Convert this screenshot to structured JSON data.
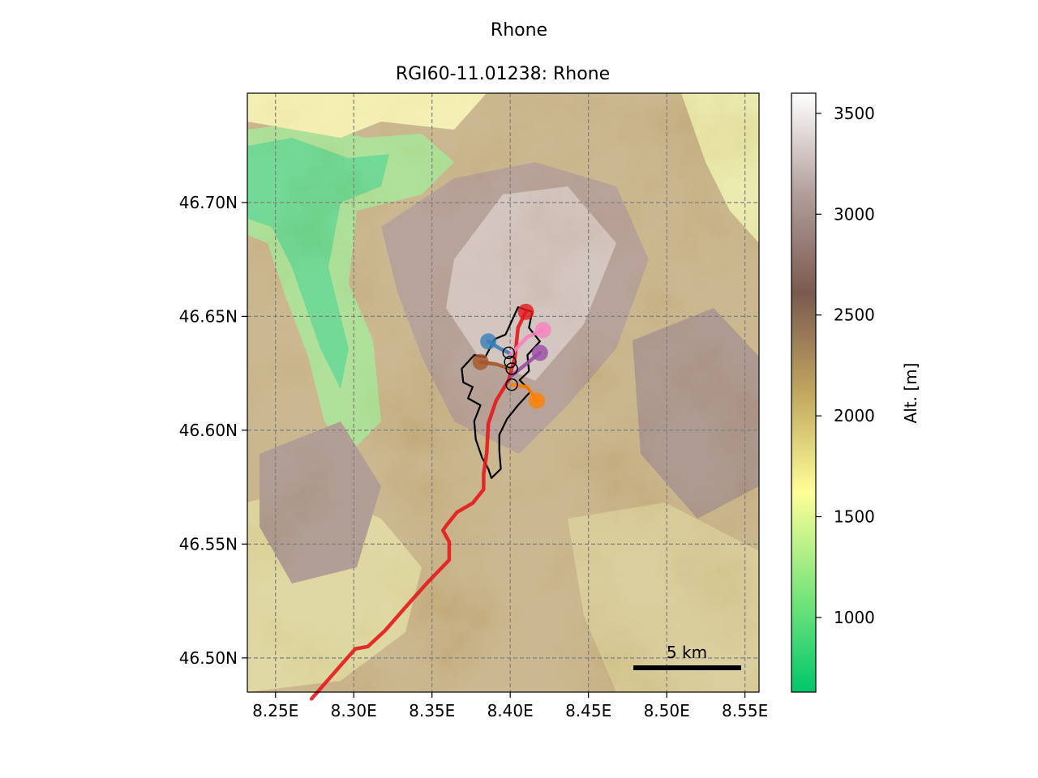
{
  "figure": {
    "suptitle": "Rhone",
    "title": "RGI60-11.01238: Rhone"
  },
  "map": {
    "lon_range": [
      8.232,
      8.559
    ],
    "lat_range": [
      46.485,
      46.748
    ],
    "x_ticks": [
      {
        "lon": 8.25,
        "label": "8.25E"
      },
      {
        "lon": 8.3,
        "label": "8.30E"
      },
      {
        "lon": 8.35,
        "label": "8.35E"
      },
      {
        "lon": 8.4,
        "label": "8.40E"
      },
      {
        "lon": 8.45,
        "label": "8.45E"
      },
      {
        "lon": 8.5,
        "label": "8.50E"
      },
      {
        "lon": 8.55,
        "label": "8.55E"
      }
    ],
    "y_ticks": [
      {
        "lat": 46.7,
        "label": "46.70N"
      },
      {
        "lat": 46.65,
        "label": "46.65N"
      },
      {
        "lat": 46.6,
        "label": "46.60N"
      },
      {
        "lat": 46.55,
        "label": "46.55N"
      },
      {
        "lat": 46.5,
        "label": "46.50N"
      }
    ],
    "scale_bar": {
      "label": "5 km",
      "length_km": 5
    },
    "grid": true
  },
  "colorbar": {
    "label": "Alt. [m]",
    "range": [
      630,
      3600
    ],
    "ticks": [
      {
        "value": 1000,
        "label": "1000"
      },
      {
        "value": 1500,
        "label": "1500"
      },
      {
        "value": 2000,
        "label": "2000"
      },
      {
        "value": 2500,
        "label": "2500"
      },
      {
        "value": 3000,
        "label": "3000"
      },
      {
        "value": 3500,
        "label": "3500"
      }
    ],
    "colormap": [
      "#00c76a",
      "#7ee67c",
      "#fffe98",
      "#bfa75f",
      "#7a5a50",
      "#b29f9b",
      "#ffffff"
    ]
  },
  "flowlines": [
    {
      "name": "main",
      "color": "#e41a1c",
      "points": [
        [
          8.41,
          46.652
        ],
        [
          8.405,
          46.645
        ],
        [
          8.403,
          46.632
        ],
        [
          8.399,
          46.622
        ],
        [
          8.391,
          46.613
        ],
        [
          8.386,
          46.603
        ],
        [
          8.385,
          46.59
        ],
        [
          8.383,
          46.581
        ],
        [
          8.383,
          46.574
        ],
        [
          8.376,
          46.568
        ],
        [
          8.366,
          46.564
        ],
        [
          8.359,
          46.558
        ],
        [
          8.357,
          46.556
        ],
        [
          8.361,
          46.551
        ],
        [
          8.361,
          46.543
        ],
        [
          8.347,
          46.533
        ],
        [
          8.334,
          46.523
        ],
        [
          8.32,
          46.512
        ],
        [
          8.309,
          46.505
        ],
        [
          8.301,
          46.504
        ],
        [
          8.292,
          46.497
        ],
        [
          8.273,
          46.482
        ]
      ]
    },
    {
      "name": "tributary-blue",
      "color": "#377eb8",
      "points": [
        [
          8.386,
          46.639
        ],
        [
          8.393,
          46.636
        ],
        [
          8.399,
          46.634
        ]
      ]
    },
    {
      "name": "tributary-brown",
      "color": "#a65628",
      "points": [
        [
          8.381,
          46.63
        ],
        [
          8.391,
          46.629
        ],
        [
          8.4,
          46.627
        ]
      ]
    },
    {
      "name": "tributary-pink",
      "color": "#f781bf",
      "points": [
        [
          8.421,
          46.644
        ],
        [
          8.411,
          46.641
        ],
        [
          8.4,
          46.633
        ]
      ]
    },
    {
      "name": "tributary-purple",
      "color": "#984ea3",
      "points": [
        [
          8.419,
          46.634
        ],
        [
          8.41,
          46.629
        ],
        [
          8.401,
          46.624
        ]
      ]
    },
    {
      "name": "tributary-orange",
      "color": "#ff7f00",
      "points": [
        [
          8.417,
          46.613
        ],
        [
          8.411,
          46.619
        ],
        [
          8.401,
          46.62
        ]
      ]
    }
  ],
  "confluences": [
    [
      8.399,
      46.634
    ],
    [
      8.4,
      46.63
    ],
    [
      8.401,
      46.627
    ],
    [
      8.401,
      46.62
    ]
  ],
  "glacier_outline": [
    [
      8.405,
      46.654
    ],
    [
      8.414,
      46.652
    ],
    [
      8.412,
      46.645
    ],
    [
      8.419,
      46.639
    ],
    [
      8.411,
      46.633
    ],
    [
      8.412,
      46.626
    ],
    [
      8.406,
      46.622
    ],
    [
      8.413,
      46.617
    ],
    [
      8.405,
      46.611
    ],
    [
      8.398,
      46.605
    ],
    [
      8.393,
      46.598
    ],
    [
      8.393,
      46.591
    ],
    [
      8.394,
      46.583
    ],
    [
      8.388,
      46.579
    ],
    [
      8.386,
      46.583
    ],
    [
      8.382,
      46.588
    ],
    [
      8.378,
      46.596
    ],
    [
      8.377,
      46.604
    ],
    [
      8.381,
      46.611
    ],
    [
      8.373,
      46.614
    ],
    [
      8.376,
      46.619
    ],
    [
      8.37,
      46.621
    ],
    [
      8.369,
      46.627
    ],
    [
      8.377,
      46.633
    ],
    [
      8.384,
      46.632
    ],
    [
      8.39,
      46.64
    ],
    [
      8.397,
      46.642
    ],
    [
      8.401,
      46.648
    ]
  ]
}
